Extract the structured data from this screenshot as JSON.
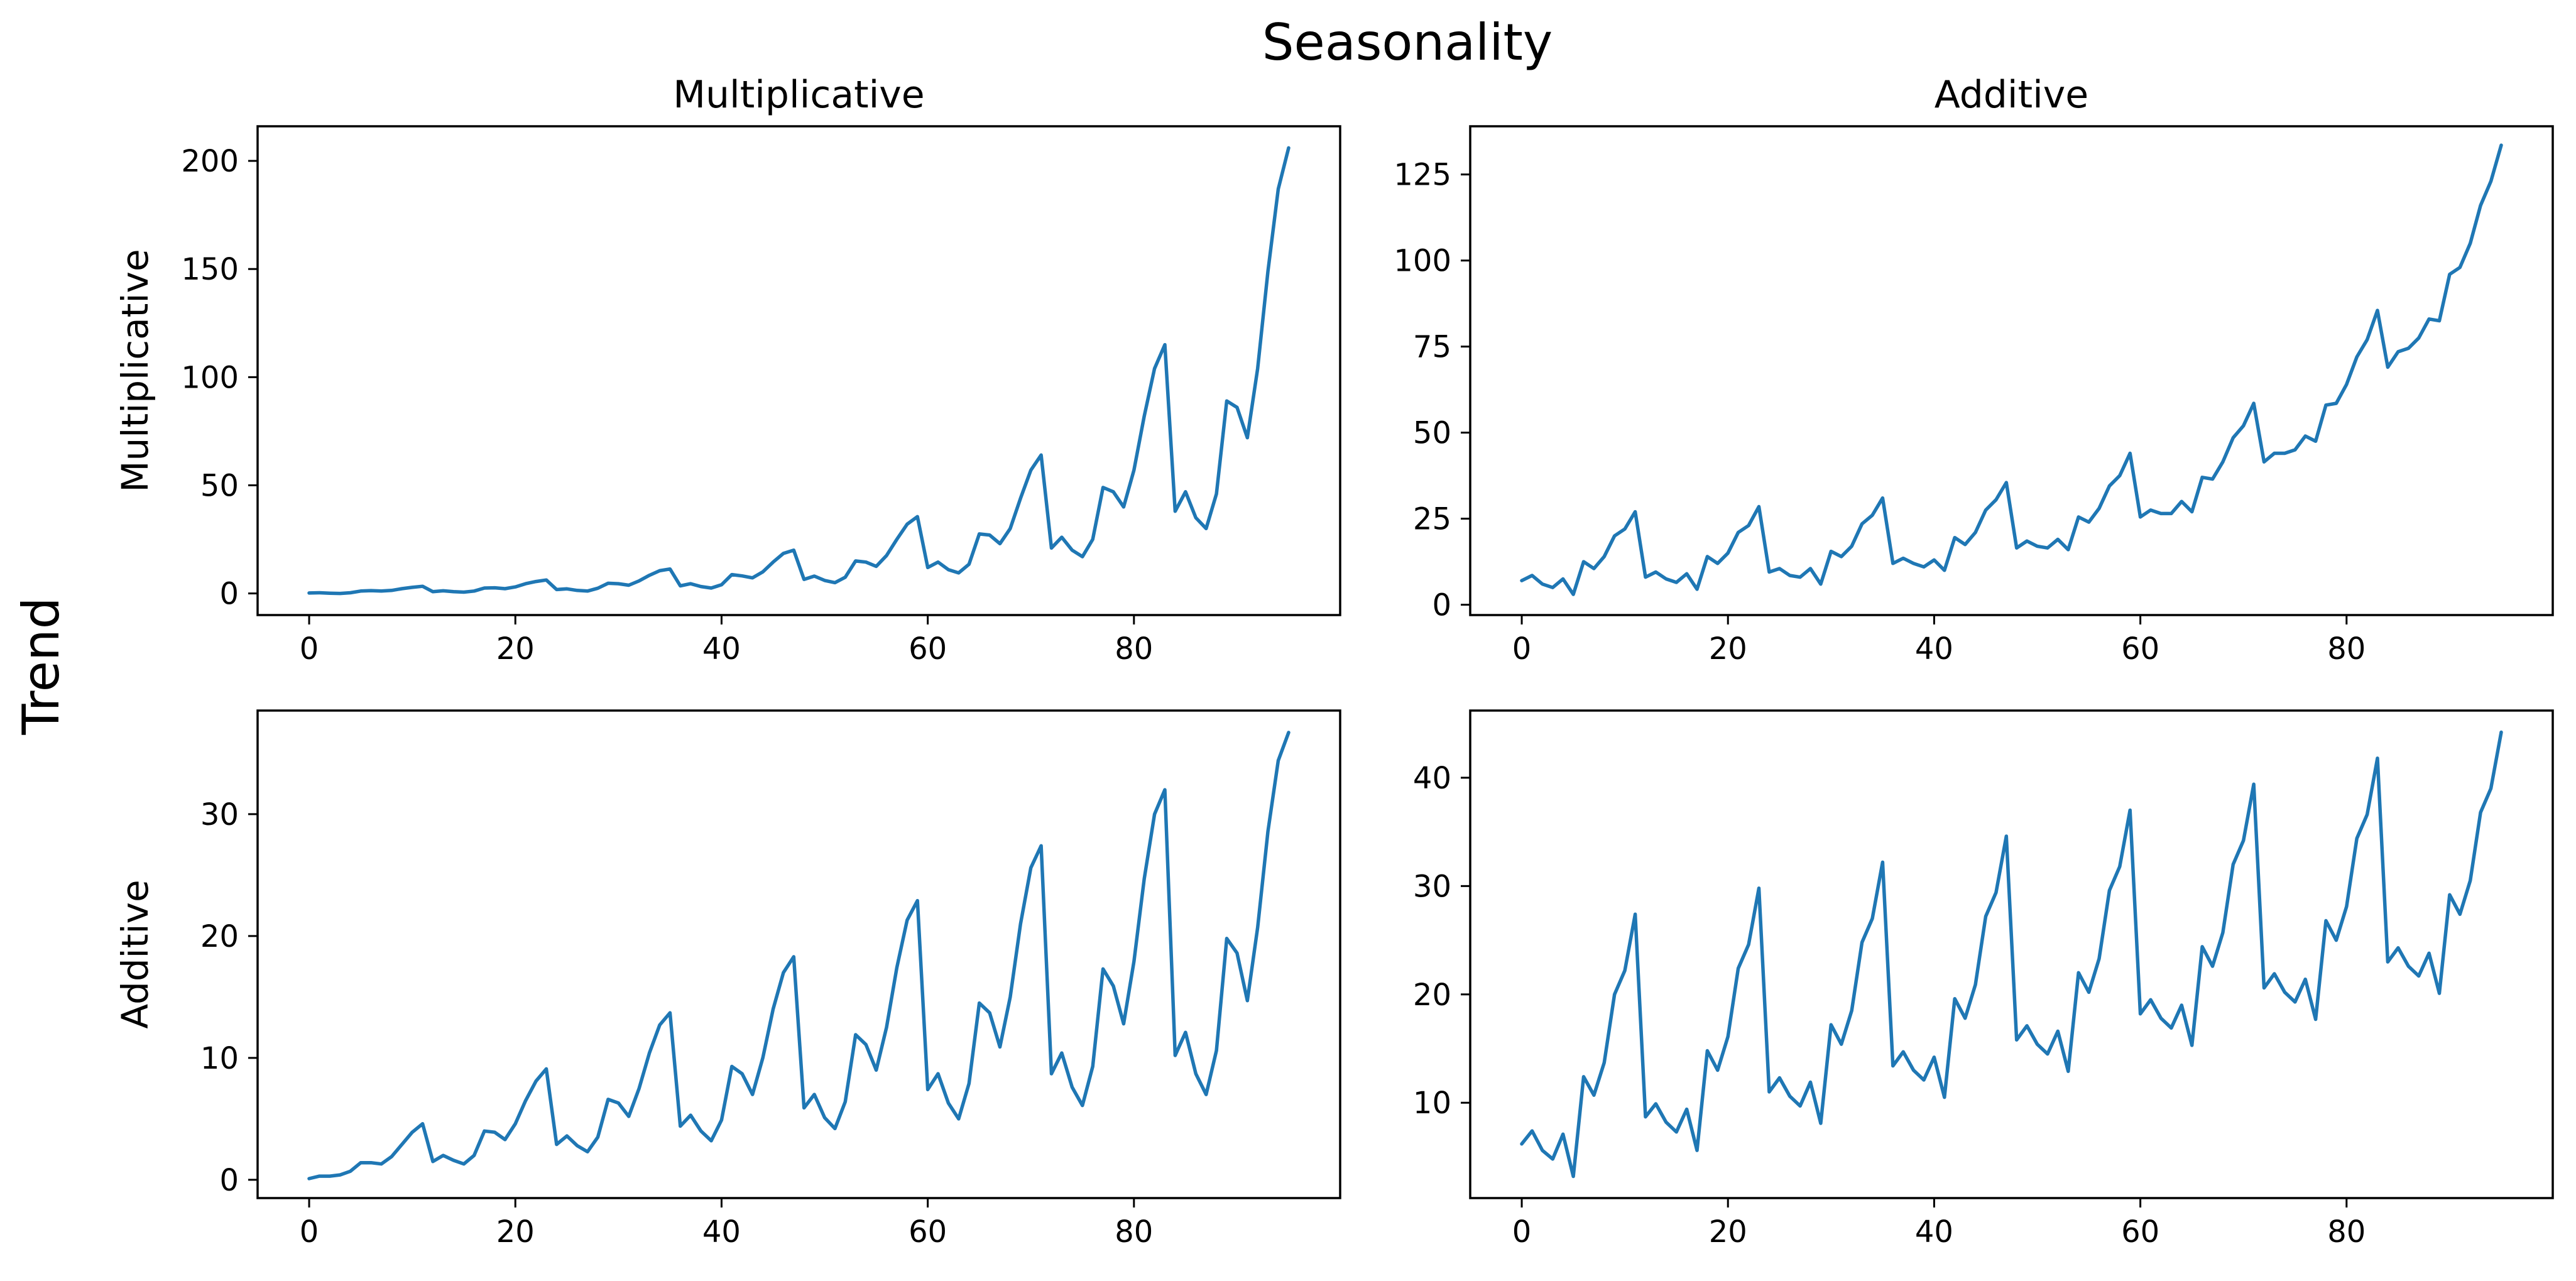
{
  "figure": {
    "suptitle": "Seasonality",
    "row_supertitle": "Trend",
    "line_color": "#1f77b4"
  },
  "chart_data": [
    {
      "type": "line",
      "title": "Multiplicative",
      "xlabel": "",
      "ylabel": "Multiplicative",
      "xlim": [
        -5,
        100
      ],
      "ylim": [
        -10,
        216
      ],
      "xticks": [
        0,
        20,
        40,
        60,
        80
      ],
      "yticks": [
        0,
        50,
        100,
        150,
        200
      ],
      "grid": false,
      "series": [
        {
          "x": [
            0,
            1,
            2,
            3,
            4,
            5,
            6,
            7,
            8,
            9,
            10,
            11,
            12,
            13,
            14,
            15,
            16,
            17,
            18,
            19,
            20,
            21,
            22,
            23,
            24,
            25,
            26,
            27,
            28,
            29,
            30,
            31,
            32,
            33,
            34,
            35,
            36,
            37,
            38,
            39,
            40,
            41,
            42,
            43,
            44,
            45,
            46,
            47,
            48,
            49,
            50,
            51,
            52,
            53,
            54,
            55,
            56,
            57,
            58,
            59,
            60,
            61,
            62,
            63,
            64,
            65,
            66,
            67,
            68,
            69,
            70,
            71,
            72,
            73,
            74,
            75,
            76,
            77,
            78,
            79,
            80,
            81,
            82,
            83,
            84,
            85,
            86,
            87,
            88,
            89,
            90,
            91,
            92,
            93,
            94,
            95
          ],
          "y": [
            0.2,
            0.3,
            0.1,
            0,
            0.3,
            1.1,
            1.3,
            1.1,
            1.4,
            2.2,
            2.8,
            3.3,
            0.8,
            1.2,
            0.8,
            0.6,
            1.1,
            2.5,
            2.6,
            2.2,
            3,
            4.5,
            5.5,
            6.2,
            1.8,
            2.1,
            1.4,
            1.1,
            2.4,
            4.7,
            4.5,
            3.8,
            5.8,
            8.4,
            10.5,
            11.3,
            3.5,
            4.5,
            3.2,
            2.5,
            4,
            8.7,
            8.1,
            7.2,
            10,
            14.5,
            18.5,
            20,
            6.5,
            8,
            6,
            5,
            7.5,
            15,
            14.5,
            12.5,
            17.5,
            25,
            32,
            35.5,
            12,
            14.5,
            11,
            9.5,
            13.5,
            27.5,
            27,
            23,
            30,
            44,
            57,
            64,
            21,
            26,
            20,
            17,
            25,
            49,
            47,
            40,
            57,
            82,
            104,
            115,
            38,
            47,
            35,
            30,
            46,
            89,
            86,
            72,
            104,
            149,
            187,
            206
          ]
        }
      ]
    },
    {
      "type": "line",
      "title": "Additive",
      "xlabel": "",
      "ylabel": "",
      "xlim": [
        -5,
        100
      ],
      "ylim": [
        -3,
        139
      ],
      "xticks": [
        0,
        20,
        40,
        60,
        80
      ],
      "yticks": [
        0,
        25,
        50,
        75,
        100,
        125
      ],
      "grid": false,
      "series": [
        {
          "x": [
            0,
            1,
            2,
            3,
            4,
            5,
            6,
            7,
            8,
            9,
            10,
            11,
            12,
            13,
            14,
            15,
            16,
            17,
            18,
            19,
            20,
            21,
            22,
            23,
            24,
            25,
            26,
            27,
            28,
            29,
            30,
            31,
            32,
            33,
            34,
            35,
            36,
            37,
            38,
            39,
            40,
            41,
            42,
            43,
            44,
            45,
            46,
            47,
            48,
            49,
            50,
            51,
            52,
            53,
            54,
            55,
            56,
            57,
            58,
            59,
            60,
            61,
            62,
            63,
            64,
            65,
            66,
            67,
            68,
            69,
            70,
            71,
            72,
            73,
            74,
            75,
            76,
            77,
            78,
            79,
            80,
            81,
            82,
            83,
            84,
            85,
            86,
            87,
            88,
            89,
            90,
            91,
            92,
            93,
            94,
            95
          ],
          "y": [
            7,
            8.5,
            6,
            5,
            7.5,
            3,
            12.5,
            10.5,
            14,
            20,
            22,
            27,
            8,
            9.5,
            7.5,
            6.5,
            9,
            4.5,
            14,
            12,
            15,
            21,
            23,
            28.5,
            9.5,
            10.5,
            8.5,
            8,
            10.5,
            6,
            15.5,
            14,
            17,
            23.5,
            26,
            31,
            12,
            13.5,
            12,
            11,
            13,
            10,
            19.5,
            17.5,
            21,
            27.5,
            30.5,
            35.5,
            16.5,
            18.5,
            17,
            16.5,
            19,
            16,
            25.5,
            24,
            28,
            34.5,
            37.5,
            44,
            25.5,
            27.5,
            26.5,
            26.5,
            30,
            27,
            37,
            36.5,
            41.5,
            48.5,
            52,
            58.5,
            41.5,
            44,
            44,
            45,
            49,
            47.5,
            58,
            58.5,
            64,
            72,
            77,
            85.5,
            69,
            73.5,
            74.5,
            77.5,
            83,
            82.5,
            96,
            98,
            105,
            116,
            123,
            133.5
          ]
        }
      ]
    },
    {
      "type": "line",
      "title": "",
      "xlabel": "",
      "ylabel": "Additive",
      "xlim": [
        -5,
        100
      ],
      "ylim": [
        -1.5,
        38.5
      ],
      "xticks": [
        0,
        20,
        40,
        60,
        80
      ],
      "yticks": [
        0,
        10,
        20,
        30
      ],
      "grid": false,
      "series": [
        {
          "x": [
            0,
            1,
            2,
            3,
            4,
            5,
            6,
            7,
            8,
            9,
            10,
            11,
            12,
            13,
            14,
            15,
            16,
            17,
            18,
            19,
            20,
            21,
            22,
            23,
            24,
            25,
            26,
            27,
            28,
            29,
            30,
            31,
            32,
            33,
            34,
            35,
            36,
            37,
            38,
            39,
            40,
            41,
            42,
            43,
            44,
            45,
            46,
            47,
            48,
            49,
            50,
            51,
            52,
            53,
            54,
            55,
            56,
            57,
            58,
            59,
            60,
            61,
            62,
            63,
            64,
            65,
            66,
            67,
            68,
            69,
            70,
            71,
            72,
            73,
            74,
            75,
            76,
            77,
            78,
            79,
            80,
            81,
            82,
            83,
            84,
            85,
            86,
            87,
            88,
            89,
            90,
            91,
            92,
            93,
            94,
            95
          ],
          "y": [
            0.1,
            0.3,
            0.3,
            0.4,
            0.7,
            1.4,
            1.4,
            1.3,
            1.9,
            2.9,
            3.9,
            4.6,
            1.5,
            2,
            1.6,
            1.3,
            2,
            4,
            3.9,
            3.3,
            4.6,
            6.5,
            8.1,
            9.1,
            2.9,
            3.6,
            2.8,
            2.3,
            3.5,
            6.6,
            6.3,
            5.2,
            7.5,
            10.4,
            12.7,
            13.7,
            4.4,
            5.3,
            4,
            3.2,
            4.9,
            9.3,
            8.7,
            7,
            10,
            14,
            17,
            18.3,
            5.9,
            7,
            5.1,
            4.2,
            6.4,
            11.9,
            11.1,
            9,
            12.5,
            17.4,
            21.3,
            22.9,
            7.4,
            8.7,
            6.3,
            5,
            7.9,
            14.5,
            13.7,
            10.9,
            15,
            21,
            25.6,
            27.4,
            8.7,
            10.4,
            7.6,
            6.1,
            9.3,
            17.3,
            15.9,
            12.8,
            17.9,
            24.7,
            30,
            32,
            10.2,
            12.1,
            8.7,
            7,
            10.6,
            19.8,
            18.6,
            14.7,
            20.7,
            28.6,
            34.4,
            36.7
          ]
        }
      ]
    },
    {
      "type": "line",
      "title": "",
      "xlabel": "",
      "ylabel": "",
      "xlim": [
        -5,
        100
      ],
      "ylim": [
        1.2,
        46.2
      ],
      "xticks": [
        0,
        20,
        40,
        60,
        80
      ],
      "yticks": [
        10,
        20,
        30,
        40
      ],
      "grid": false,
      "series": [
        {
          "x": [
            0,
            1,
            2,
            3,
            4,
            5,
            6,
            7,
            8,
            9,
            10,
            11,
            12,
            13,
            14,
            15,
            16,
            17,
            18,
            19,
            20,
            21,
            22,
            23,
            24,
            25,
            26,
            27,
            28,
            29,
            30,
            31,
            32,
            33,
            34,
            35,
            36,
            37,
            38,
            39,
            40,
            41,
            42,
            43,
            44,
            45,
            46,
            47,
            48,
            49,
            50,
            51,
            52,
            53,
            54,
            55,
            56,
            57,
            58,
            59,
            60,
            61,
            62,
            63,
            64,
            65,
            66,
            67,
            68,
            69,
            70,
            71,
            72,
            73,
            74,
            75,
            76,
            77,
            78,
            79,
            80,
            81,
            82,
            83,
            84,
            85,
            86,
            87,
            88,
            89,
            90,
            91,
            92,
            93,
            94,
            95
          ],
          "y": [
            6.2,
            7.4,
            5.6,
            4.8,
            7.1,
            3.2,
            12.4,
            10.7,
            13.7,
            20,
            22.2,
            27.4,
            8.7,
            9.9,
            8.2,
            7.3,
            9.4,
            5.6,
            14.8,
            13,
            16.1,
            22.4,
            24.6,
            29.8,
            11,
            12.3,
            10.6,
            9.7,
            11.9,
            8.1,
            17.2,
            15.4,
            18.5,
            24.8,
            27,
            32.2,
            13.4,
            14.7,
            13,
            12.1,
            14.2,
            10.5,
            19.6,
            17.8,
            20.9,
            27.2,
            29.4,
            34.6,
            15.8,
            17.1,
            15.4,
            14.5,
            16.6,
            12.9,
            22,
            20.2,
            23.3,
            29.6,
            31.8,
            37,
            18.2,
            19.5,
            17.8,
            16.9,
            19,
            15.3,
            24.4,
            22.6,
            25.7,
            32,
            34.2,
            39.4,
            20.6,
            21.9,
            20.2,
            19.3,
            21.4,
            17.7,
            26.8,
            25,
            28.1,
            34.4,
            36.6,
            41.8,
            23,
            24.3,
            22.6,
            21.7,
            23.8,
            20.1,
            29.2,
            27.4,
            30.5,
            36.8,
            39,
            44.2
          ]
        }
      ]
    }
  ]
}
